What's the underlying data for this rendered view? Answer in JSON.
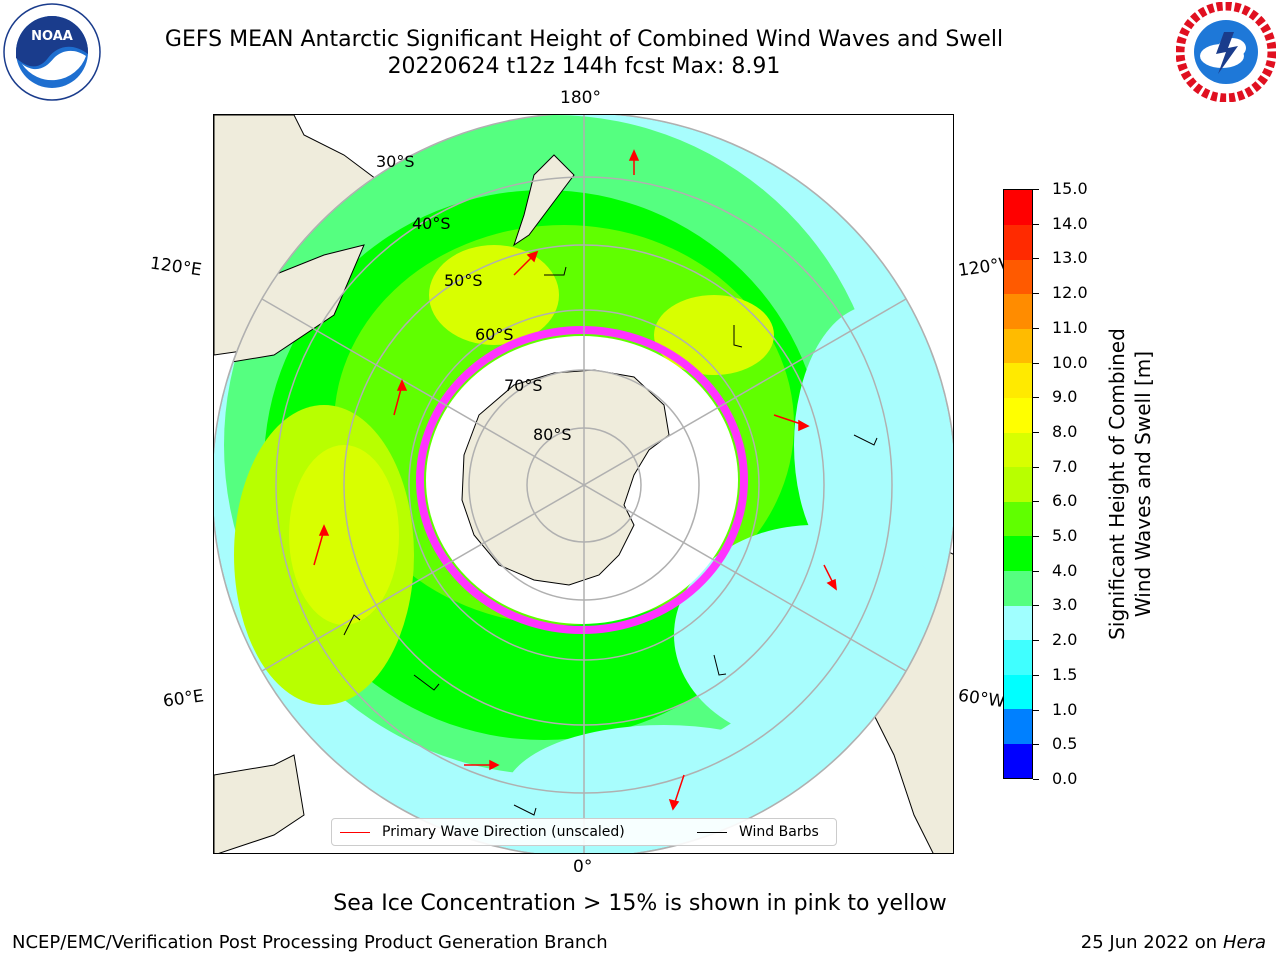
{
  "header": {
    "title_line1": "GEFS MEAN Antarctic Significant Height of Combined Wind Waves and Swell",
    "title_line2": "20220624 t12z 144h fcst   Max: 8.91"
  },
  "logos": {
    "left": "noaa-logo",
    "right": "national-weather-service-logo"
  },
  "map": {
    "projection": "south-polar-stereographic",
    "longitude_labels": {
      "top": "180°",
      "bottom": "0°",
      "upper_left": "120°E",
      "lower_left": "60°E",
      "upper_right": "120°W",
      "lower_right": "60°W"
    },
    "latitude_labels": [
      "30°S",
      "40°S",
      "50°S",
      "60°S",
      "70°S",
      "80°S"
    ],
    "colors": {
      "land": "#efecdc",
      "sea_ice": "#ffffff",
      "sea_ice_edge": "#ff33ff",
      "grid": "#b0b0b0",
      "wave_arrow": "#ff0000",
      "wind_barb": "#000000"
    }
  },
  "legend": {
    "wave_direction": "Primary Wave Direction (unscaled)",
    "wind_barbs": "Wind Barbs"
  },
  "colorbar": {
    "title_line1": "Significant Height of Combined",
    "title_line2": "Wind Waves and Swell [m]",
    "ticks": [
      "0.0",
      "0.5",
      "1.0",
      "1.5",
      "2.0",
      "3.0",
      "4.0",
      "5.0",
      "6.0",
      "7.0",
      "8.0",
      "9.0",
      "10.0",
      "11.0",
      "12.0",
      "13.0",
      "14.0",
      "15.0"
    ],
    "colors": [
      "#0000ff",
      "#0080ff",
      "#00ffff",
      "#40ffff",
      "#a0ffff",
      "#55ff80",
      "#00ff00",
      "#60ff00",
      "#b8ff00",
      "#d8ff00",
      "#ffff00",
      "#ffea00",
      "#ffbb00",
      "#ff8c00",
      "#ff5a00",
      "#ff2a00",
      "#ff0000"
    ]
  },
  "footer": {
    "ice_note": "Sea Ice Concentration > 15% is shown in pink to yellow",
    "credit": "NCEP/EMC/Verification Post Processing Product Generation Branch",
    "date": "25 Jun 2022 on",
    "machine": "Hera"
  }
}
